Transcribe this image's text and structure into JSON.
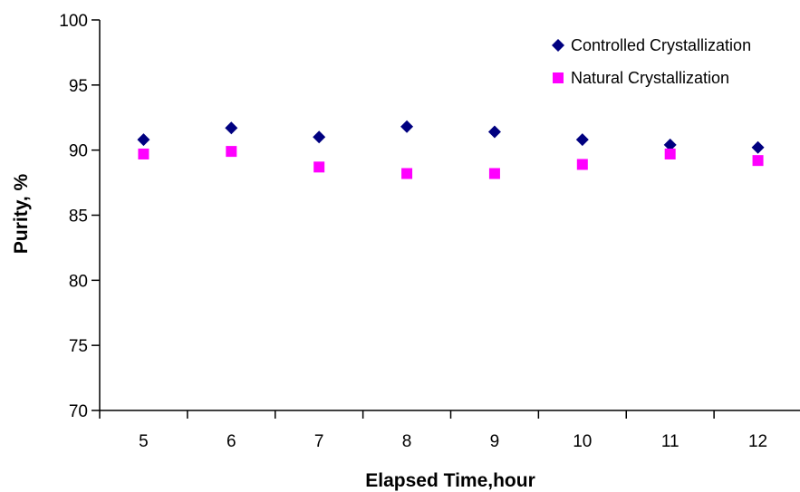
{
  "chart_data": {
    "type": "scatter",
    "title": "",
    "xlabel": "Elapsed Time,hour",
    "ylabel": "Purity, %",
    "categories": [
      "5",
      "6",
      "7",
      "8",
      "9",
      "10",
      "11",
      "12"
    ],
    "ylim": [
      70,
      100
    ],
    "yticks": [
      "70",
      "75",
      "80",
      "85",
      "90",
      "95",
      "100"
    ],
    "grid": false,
    "legend_position": "top-right",
    "series": [
      {
        "name": "Controlled Crystallization",
        "marker": "diamond",
        "color": "#000080",
        "values": [
          90.8,
          91.7,
          91.0,
          91.8,
          91.4,
          90.8,
          90.4,
          90.2
        ]
      },
      {
        "name": "Natural Crystallization",
        "marker": "square",
        "color": "#FF00FF",
        "values": [
          89.7,
          89.9,
          88.7,
          88.2,
          88.2,
          88.9,
          89.7,
          89.2
        ]
      }
    ]
  }
}
